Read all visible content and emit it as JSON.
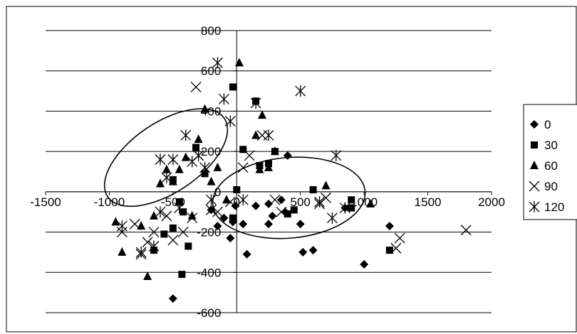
{
  "chart_data": {
    "type": "scatter",
    "xlim": [
      -1500,
      2000
    ],
    "ylim": [
      -600,
      800
    ],
    "x_ticks": [
      -1500,
      -1000,
      -500,
      0,
      500,
      1000,
      1500,
      2000
    ],
    "y_ticks": [
      -600,
      -400,
      -200,
      0,
      200,
      400,
      600,
      800
    ],
    "x_tick_labels": [
      "-1500",
      "-1000",
      "-500",
      "0",
      "500",
      "1000",
      "1500",
      "2000"
    ],
    "y_tick_labels": [
      "-600",
      "-400",
      "-200",
      "0",
      "200",
      "400",
      "600",
      "800"
    ],
    "grid": "horizontal",
    "legend_position": "right",
    "series": [
      {
        "name": "0",
        "marker": "diamond",
        "points": [
          [
            -150,
            -170
          ],
          [
            -50,
            -230
          ],
          [
            -30,
            -150
          ],
          [
            -100,
            -130
          ],
          [
            50,
            -160
          ],
          [
            80,
            -310
          ],
          [
            150,
            -70
          ],
          [
            250,
            -160
          ],
          [
            280,
            -120
          ],
          [
            350,
            -40
          ],
          [
            380,
            -100
          ],
          [
            500,
            -160
          ],
          [
            520,
            -300
          ],
          [
            600,
            -290
          ],
          [
            400,
            180
          ],
          [
            250,
            -60
          ],
          [
            850,
            -80
          ],
          [
            1000,
            -360
          ],
          [
            1200,
            -170
          ],
          [
            -200,
            -90
          ],
          [
            -10,
            -70
          ],
          [
            -500,
            -530
          ]
        ]
      },
      {
        "name": "30",
        "marker": "square",
        "points": [
          [
            -420,
            -100
          ],
          [
            -500,
            -180
          ],
          [
            -380,
            -270
          ],
          [
            -430,
            -410
          ],
          [
            -570,
            -210
          ],
          [
            -450,
            -50
          ],
          [
            -320,
            220
          ],
          [
            -250,
            90
          ],
          [
            -30,
            520
          ],
          [
            50,
            210
          ],
          [
            150,
            450
          ],
          [
            180,
            130
          ],
          [
            250,
            140
          ],
          [
            300,
            200
          ],
          [
            0,
            10
          ],
          [
            -30,
            -130
          ],
          [
            600,
            10
          ],
          [
            400,
            -110
          ],
          [
            450,
            -90
          ],
          [
            1200,
            -290
          ],
          [
            900,
            -80
          ],
          [
            900,
            -40
          ],
          [
            -650,
            -290
          ],
          [
            -500,
            60
          ]
        ]
      },
      {
        "name": "60",
        "marker": "triangle",
        "points": [
          [
            -950,
            -150
          ],
          [
            -900,
            -300
          ],
          [
            -750,
            -170
          ],
          [
            -700,
            -420
          ],
          [
            -650,
            -120
          ],
          [
            -600,
            40
          ],
          [
            -550,
            110
          ],
          [
            -500,
            50
          ],
          [
            -450,
            110
          ],
          [
            -400,
            170
          ],
          [
            -300,
            260
          ],
          [
            -250,
            410
          ],
          [
            -200,
            50
          ],
          [
            20,
            640
          ],
          [
            150,
            280
          ],
          [
            200,
            380
          ],
          [
            250,
            120
          ],
          [
            300,
            200
          ],
          [
            -80,
            -40
          ],
          [
            700,
            30
          ],
          [
            1050,
            -60
          ],
          [
            -350,
            -120
          ],
          [
            -150,
            120
          ],
          [
            180,
            110
          ]
        ]
      },
      {
        "name": "90",
        "marker": "x",
        "points": [
          [
            -900,
            -200
          ],
          [
            -800,
            -160
          ],
          [
            -750,
            -310
          ],
          [
            -700,
            -250
          ],
          [
            -650,
            -200
          ],
          [
            -550,
            -120
          ],
          [
            -500,
            -240
          ],
          [
            -420,
            -200
          ],
          [
            -350,
            -130
          ],
          [
            -320,
            520
          ],
          [
            -300,
            180
          ],
          [
            -200,
            -90
          ],
          [
            -150,
            -100
          ],
          [
            -50,
            -50
          ],
          [
            50,
            120
          ],
          [
            100,
            180
          ],
          [
            200,
            280
          ],
          [
            300,
            -40
          ],
          [
            350,
            -100
          ],
          [
            700,
            -30
          ],
          [
            1280,
            -230
          ],
          [
            1250,
            -280
          ],
          [
            1800,
            -190
          ],
          [
            650,
            -60
          ]
        ]
      },
      {
        "name": "120",
        "marker": "star",
        "points": [
          [
            -900,
            -170
          ],
          [
            -750,
            -300
          ],
          [
            -650,
            -270
          ],
          [
            -600,
            -100
          ],
          [
            -600,
            160
          ],
          [
            -550,
            70
          ],
          [
            -500,
            160
          ],
          [
            -450,
            -80
          ],
          [
            -400,
            280
          ],
          [
            -350,
            150
          ],
          [
            -300,
            180
          ],
          [
            -250,
            120
          ],
          [
            -150,
            640
          ],
          [
            -100,
            460
          ],
          [
            -50,
            350
          ],
          [
            150,
            440
          ],
          [
            250,
            280
          ],
          [
            500,
            500
          ],
          [
            650,
            -50
          ],
          [
            750,
            -130
          ],
          [
            850,
            -80
          ],
          [
            780,
            180
          ],
          [
            50,
            -40
          ],
          [
            -200,
            -40
          ]
        ]
      }
    ],
    "ellipses": [
      {
        "cx": -555,
        "cy": 170,
        "rx": 890,
        "ry": 280,
        "angle_deg": 34
      },
      {
        "cx": 410,
        "cy": -30,
        "rx": 600,
        "ry": 200,
        "angle_deg": 5
      }
    ]
  }
}
